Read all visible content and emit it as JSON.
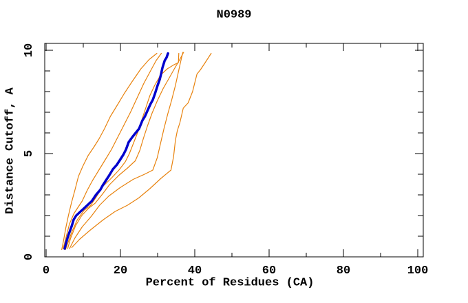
{
  "title": "N0989",
  "colors": {
    "background": "#ffffff",
    "axis": "#000000",
    "model_line": "#e8820d",
    "highlight_line": "#0000cd"
  },
  "chart_data": {
    "type": "line",
    "title": "N0989",
    "xlabel": "Percent of Residues (CA)",
    "ylabel": "Distance Cutoff, A",
    "xlim": [
      0,
      100
    ],
    "ylim": [
      0,
      10
    ],
    "grid": false,
    "legend": "none",
    "x_ticks_major": [
      {
        "v": 0,
        "label": "0"
      },
      {
        "v": 20,
        "label": "20"
      },
      {
        "v": 40,
        "label": "40"
      },
      {
        "v": 60,
        "label": "60"
      },
      {
        "v": 80,
        "label": "80"
      },
      {
        "v": 100,
        "label": "100"
      }
    ],
    "x_ticks_minor": [
      10,
      30,
      50,
      70,
      90
    ],
    "y_ticks_major": [
      {
        "v": 0,
        "label": "0"
      },
      {
        "v": 5,
        "label": "5"
      },
      {
        "v": 10,
        "label": "10"
      }
    ],
    "y_ticks_minor": [
      1,
      2,
      3,
      4,
      6,
      7,
      8,
      9
    ],
    "series": [
      {
        "id": "orange-1",
        "color": "#e8820d",
        "width": 1.2,
        "points": [
          [
            4.2,
            0.35
          ],
          [
            4.7,
            0.8
          ],
          [
            5.3,
            1.4
          ],
          [
            6.0,
            2.0
          ],
          [
            6.8,
            2.6
          ],
          [
            7.7,
            3.2
          ],
          [
            8.7,
            3.9
          ],
          [
            9.9,
            4.4
          ],
          [
            11.3,
            4.9
          ],
          [
            12.8,
            5.3
          ],
          [
            14.2,
            5.7
          ],
          [
            15.7,
            6.2
          ],
          [
            17.3,
            6.8
          ],
          [
            19.0,
            7.3
          ],
          [
            21.0,
            7.9
          ],
          [
            23.2,
            8.5
          ],
          [
            25.5,
            9.1
          ],
          [
            27.7,
            9.55
          ],
          [
            29.8,
            9.85
          ]
        ]
      },
      {
        "id": "orange-2",
        "color": "#e8820d",
        "width": 1.2,
        "points": [
          [
            4.6,
            0.4
          ],
          [
            5.3,
            0.9
          ],
          [
            6.3,
            1.6
          ],
          [
            7.5,
            2.1
          ],
          [
            8.6,
            2.4
          ],
          [
            9.7,
            2.7
          ],
          [
            11.0,
            3.2
          ],
          [
            12.5,
            3.7
          ],
          [
            14.2,
            4.2
          ],
          [
            15.9,
            4.7
          ],
          [
            17.6,
            5.2
          ],
          [
            19.3,
            5.8
          ],
          [
            21.0,
            6.4
          ],
          [
            22.7,
            7.0
          ],
          [
            24.5,
            7.7
          ],
          [
            26.3,
            8.4
          ],
          [
            28.1,
            9.0
          ],
          [
            29.6,
            9.5
          ],
          [
            31.0,
            9.85
          ]
        ]
      },
      {
        "id": "orange-3",
        "color": "#e8820d",
        "width": 1.2,
        "points": [
          [
            5.2,
            0.35
          ],
          [
            5.9,
            0.7
          ],
          [
            6.9,
            1.2
          ],
          [
            8.4,
            1.8
          ],
          [
            10.2,
            2.25
          ],
          [
            12.0,
            2.5
          ],
          [
            13.5,
            2.9
          ],
          [
            15.2,
            3.4
          ],
          [
            17.5,
            3.8
          ],
          [
            19.6,
            4.2
          ],
          [
            21.3,
            4.6
          ],
          [
            22.4,
            5.0
          ],
          [
            23.5,
            5.5
          ],
          [
            24.6,
            6.0
          ],
          [
            25.7,
            6.6
          ],
          [
            26.8,
            7.2
          ],
          [
            27.9,
            7.8
          ],
          [
            29.2,
            8.3
          ],
          [
            30.8,
            8.8
          ],
          [
            32.6,
            9.1
          ],
          [
            34.4,
            9.3
          ],
          [
            35.6,
            9.4
          ],
          [
            35.7,
            9.85
          ]
        ]
      },
      {
        "id": "orange-4",
        "color": "#e8820d",
        "width": 1.2,
        "points": [
          [
            5.8,
            0.4
          ],
          [
            6.6,
            0.9
          ],
          [
            7.9,
            1.5
          ],
          [
            9.6,
            2.0
          ],
          [
            11.4,
            2.35
          ],
          [
            13.2,
            2.6
          ],
          [
            15.0,
            3.0
          ],
          [
            17.1,
            3.5
          ],
          [
            19.6,
            3.95
          ],
          [
            21.9,
            4.3
          ],
          [
            24.0,
            4.65
          ],
          [
            25.2,
            5.15
          ],
          [
            26.2,
            5.75
          ],
          [
            27.3,
            6.35
          ],
          [
            28.5,
            6.95
          ],
          [
            29.9,
            7.55
          ],
          [
            31.5,
            8.15
          ],
          [
            33.1,
            8.65
          ],
          [
            34.5,
            9.1
          ],
          [
            35.8,
            9.5
          ],
          [
            37.0,
            9.9
          ]
        ]
      },
      {
        "id": "orange-5",
        "color": "#e8820d",
        "width": 1.2,
        "points": [
          [
            6.3,
            0.4
          ],
          [
            7.7,
            0.9
          ],
          [
            9.7,
            1.45
          ],
          [
            12.1,
            1.95
          ],
          [
            14.4,
            2.5
          ],
          [
            16.9,
            2.95
          ],
          [
            19.9,
            3.35
          ],
          [
            23.4,
            3.75
          ],
          [
            26.5,
            4.0
          ],
          [
            28.7,
            4.2
          ],
          [
            29.9,
            4.8
          ],
          [
            30.8,
            5.5
          ],
          [
            31.7,
            6.2
          ],
          [
            32.7,
            6.9
          ],
          [
            33.8,
            7.6
          ],
          [
            34.8,
            8.3
          ],
          [
            35.6,
            8.95
          ],
          [
            36.2,
            9.45
          ],
          [
            36.8,
            9.9
          ]
        ]
      },
      {
        "id": "orange-6",
        "color": "#e8820d",
        "width": 1.2,
        "points": [
          [
            6.9,
            0.45
          ],
          [
            9.0,
            0.85
          ],
          [
            11.9,
            1.3
          ],
          [
            15.4,
            1.8
          ],
          [
            18.6,
            2.2
          ],
          [
            21.9,
            2.5
          ],
          [
            24.9,
            2.85
          ],
          [
            27.9,
            3.3
          ],
          [
            30.9,
            3.8
          ],
          [
            33.6,
            4.2
          ],
          [
            34.3,
            4.85
          ],
          [
            34.8,
            5.65
          ],
          [
            35.3,
            6.1
          ],
          [
            36.0,
            6.5
          ],
          [
            36.9,
            7.2
          ],
          [
            38.2,
            7.45
          ],
          [
            39.4,
            8.0
          ],
          [
            40.6,
            8.85
          ],
          [
            41.5,
            9.05
          ],
          [
            42.8,
            9.4
          ],
          [
            44.4,
            9.85
          ]
        ]
      },
      {
        "id": "blue-main",
        "color": "#0000cd",
        "width": 3.5,
        "points": [
          [
            5.0,
            0.4
          ],
          [
            5.4,
            0.7
          ],
          [
            5.9,
            1.0
          ],
          [
            6.5,
            1.3
          ],
          [
            6.9,
            1.5
          ],
          [
            7.4,
            1.8
          ],
          [
            8.1,
            2.0
          ],
          [
            9.3,
            2.2
          ],
          [
            10.2,
            2.35
          ],
          [
            11.1,
            2.5
          ],
          [
            12.3,
            2.7
          ],
          [
            13.4,
            3.0
          ],
          [
            14.6,
            3.25
          ],
          [
            15.2,
            3.45
          ],
          [
            16.1,
            3.7
          ],
          [
            17.0,
            3.95
          ],
          [
            18.0,
            4.25
          ],
          [
            19.0,
            4.45
          ],
          [
            19.9,
            4.7
          ],
          [
            20.8,
            4.95
          ],
          [
            21.5,
            5.2
          ],
          [
            22.2,
            5.55
          ],
          [
            23.2,
            5.8
          ],
          [
            24.1,
            6.0
          ],
          [
            25.0,
            6.2
          ],
          [
            25.9,
            6.6
          ],
          [
            26.6,
            6.8
          ],
          [
            27.2,
            7.05
          ],
          [
            28.1,
            7.4
          ],
          [
            28.7,
            7.6
          ],
          [
            29.3,
            7.9
          ],
          [
            30.0,
            8.3
          ],
          [
            30.6,
            8.6
          ],
          [
            31.0,
            8.9
          ],
          [
            31.3,
            9.15
          ],
          [
            31.9,
            9.5
          ],
          [
            32.4,
            9.65
          ],
          [
            32.8,
            9.85
          ]
        ]
      }
    ]
  }
}
